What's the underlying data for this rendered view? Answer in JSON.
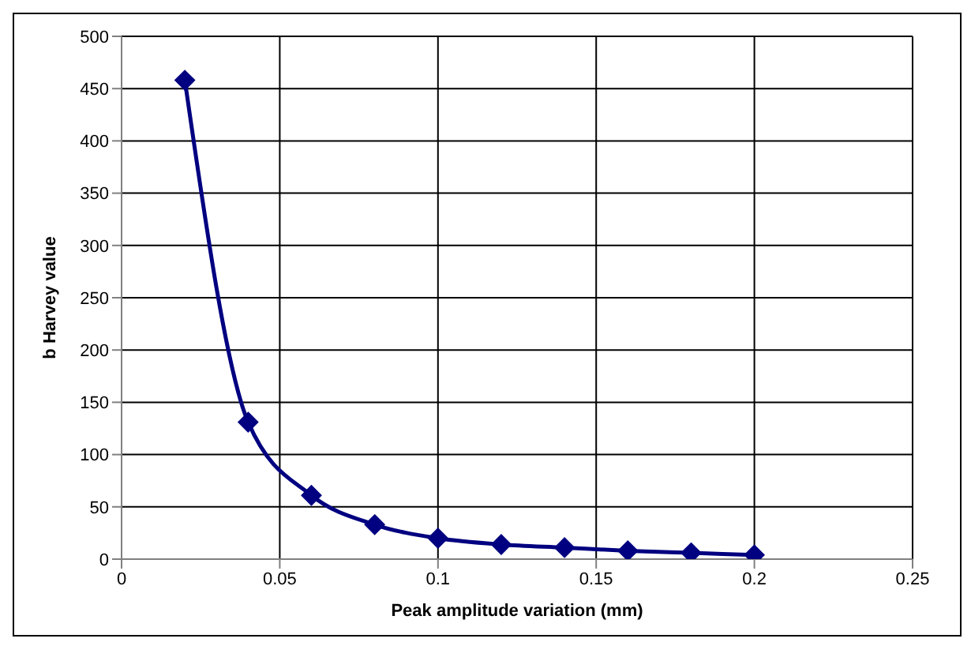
{
  "chart_data": {
    "type": "line",
    "xlabel": "Peak amplitude variation (mm)",
    "ylabel": "b Harvey value",
    "x": [
      0.02,
      0.04,
      0.06,
      0.08,
      0.1,
      0.12,
      0.14,
      0.16,
      0.18,
      0.2
    ],
    "series": [
      {
        "color": "#000080",
        "values": [
          458,
          131,
          61,
          33,
          20,
          14,
          11,
          8,
          6,
          4
        ]
      }
    ],
    "xlim": [
      0,
      0.25
    ],
    "xticks": [
      0,
      0.05,
      0.1,
      0.15,
      0.2,
      0.25
    ],
    "ylim": [
      0,
      500
    ],
    "yticks": [
      0,
      50,
      100,
      150,
      200,
      250,
      300,
      350,
      400,
      450,
      500
    ],
    "grid": true,
    "marker": "diamond",
    "line_style": "solid"
  }
}
